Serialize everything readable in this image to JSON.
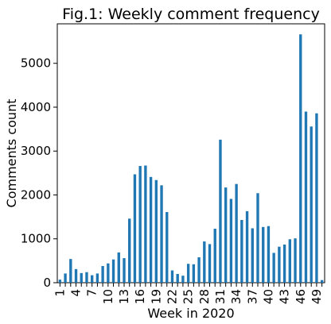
{
  "chart_data": {
    "type": "bar",
    "title": "Fig.1: Weekly comment frequency",
    "xlabel": "Week in 2020",
    "ylabel": "Comments count",
    "ylim": [
      0,
      5900
    ],
    "yticks": [
      0,
      1000,
      2000,
      3000,
      4000,
      5000
    ],
    "xtick_labels": [
      "1",
      "4",
      "7",
      "10",
      "13",
      "16",
      "19",
      "22",
      "25",
      "28",
      "31",
      "34",
      "37",
      "40",
      "43",
      "46",
      "49"
    ],
    "grid": false,
    "legend": "none",
    "bar_color": "#1f77b4",
    "categories": [
      "1",
      "2",
      "3",
      "4",
      "5",
      "6",
      "7",
      "8",
      "9",
      "10",
      "11",
      "12",
      "13",
      "14",
      "15",
      "16",
      "17",
      "18",
      "19",
      "20",
      "21",
      "22",
      "23",
      "24",
      "25",
      "26",
      "27",
      "28",
      "29",
      "30",
      "31",
      "32",
      "33",
      "34",
      "35",
      "36",
      "37",
      "38",
      "39",
      "40",
      "41",
      "42",
      "43",
      "44",
      "45",
      "46",
      "47",
      "48",
      "49",
      "50"
    ],
    "values": [
      70,
      210,
      540,
      310,
      220,
      240,
      170,
      210,
      380,
      440,
      530,
      690,
      560,
      1460,
      2470,
      2660,
      2670,
      2410,
      2340,
      2220,
      1610,
      280,
      200,
      160,
      430,
      420,
      580,
      940,
      880,
      1230,
      3260,
      2170,
      1910,
      2250,
      1430,
      1630,
      1240,
      2040,
      1270,
      1290,
      680,
      820,
      870,
      990,
      1010,
      5660,
      3900,
      3560,
      3860,
      60
    ]
  }
}
